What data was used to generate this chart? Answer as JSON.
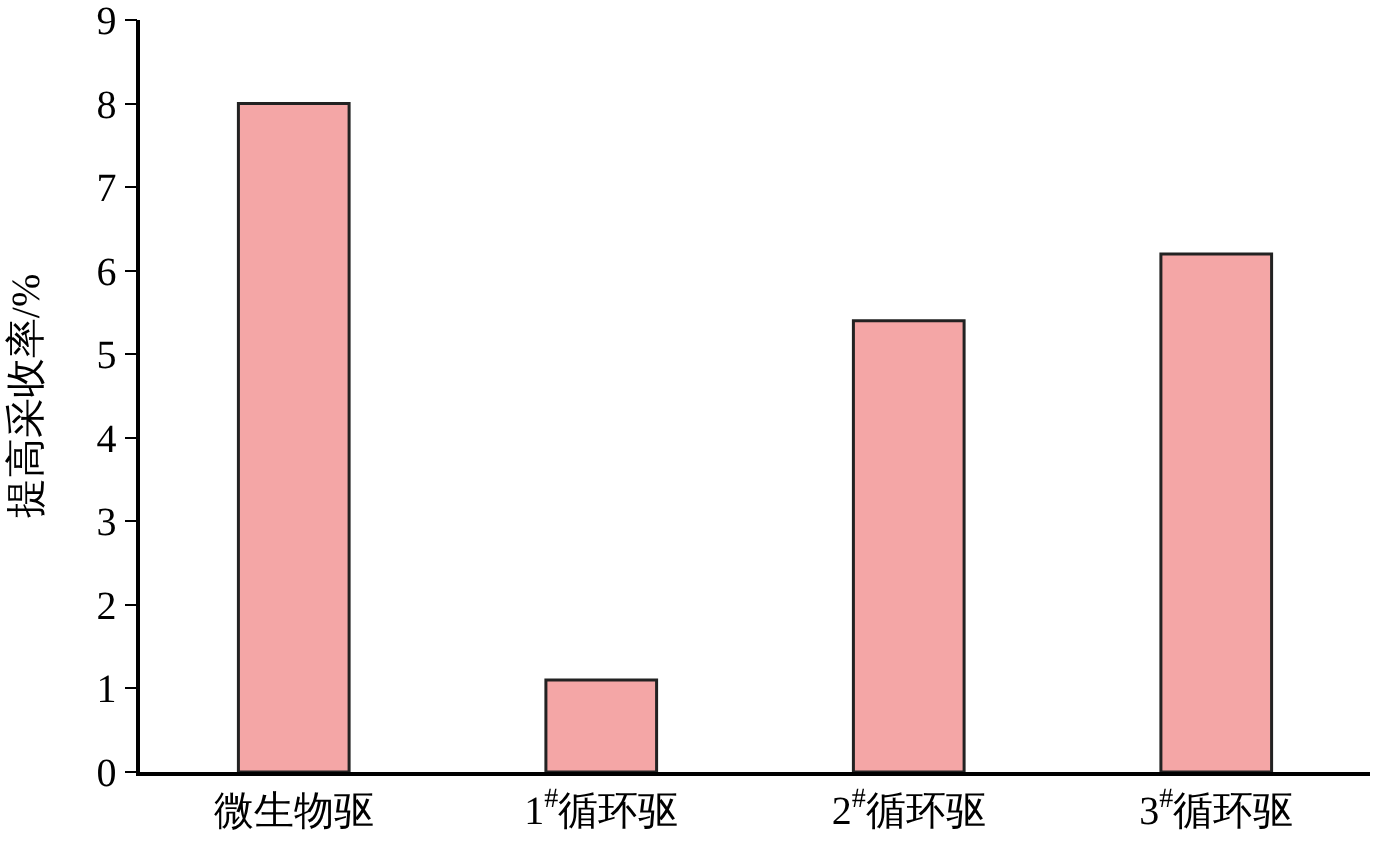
{
  "chart_data": {
    "type": "bar",
    "ylabel": "提高采收率/%",
    "categories": [
      "微生物驱",
      "1$^{#}$循环驱",
      "2$^{#}$循环驱",
      "3$^{#}$循环驱"
    ],
    "values": [
      8.0,
      1.1,
      5.4,
      6.2
    ],
    "color": "#f4a6a6",
    "ylim": [
      0,
      9
    ],
    "yticks": [
      0,
      1,
      2,
      3,
      4,
      5,
      6,
      7,
      8,
      9
    ],
    "grid": false
  }
}
